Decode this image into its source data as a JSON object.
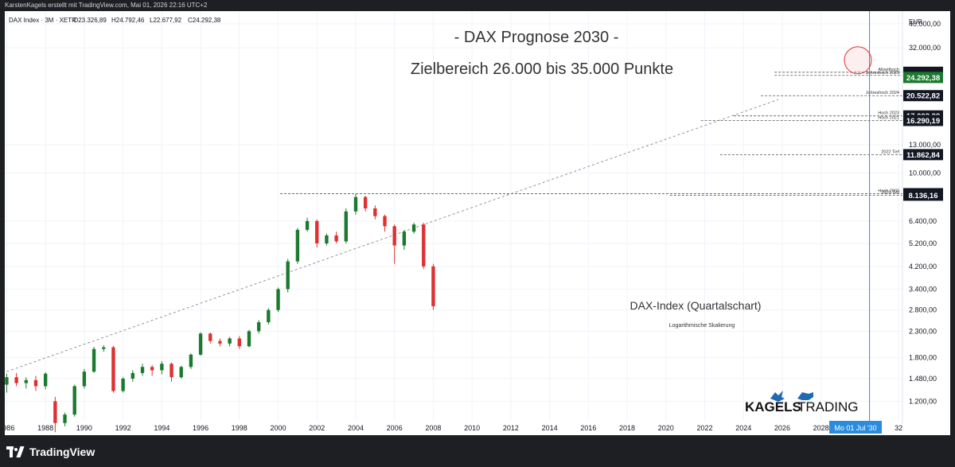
{
  "header": {
    "credit": "KarstenKagels erstellt mit TradingView.com, Mai 01, 2026 22:16 UTC+2"
  },
  "legend": {
    "symbol": "DAX Index · 3M · XETR",
    "open": "O23.326,89",
    "high": "H24.792,46",
    "low": "L22.677,92",
    "close": "C24.292,38"
  },
  "footer": {
    "brand": "TradingView"
  },
  "colors": {
    "up": "#1b7a2e",
    "down": "#e03131",
    "cursor": "#2a8cdf",
    "target": "#e03131",
    "brand_blue": "#1e6ab5"
  },
  "chart_data": {
    "type": "candlestick",
    "title": "- DAX Prognose 2030 -",
    "subtitle": "Zielbereich 26.000 bis 35.000 Punkte",
    "annotation": "DAX-Index (Quartalschart)",
    "annotation2": "Logarithmische Skalierung",
    "currency": "EUR",
    "scale": "log",
    "y_range": [
      1000,
      45000
    ],
    "x_range": [
      1985.9,
      2032.2
    ],
    "y_ticks": [
      "40.000,00",
      "32.000,00",
      "13.000,00",
      "10.000,00",
      "6.400,00",
      "5.200,00",
      "4.200,00",
      "3.400,00",
      "2.800,00",
      "2.300,00",
      "1.800,00",
      "1.480,00",
      "1.200,00"
    ],
    "x_ticks": [
      "1986",
      "1988",
      "1990",
      "1992",
      "1994",
      "1996",
      "1998",
      "2000",
      "2002",
      "2004",
      "2006",
      "2008",
      "2010",
      "2012",
      "2014",
      "2016",
      "2018",
      "2020",
      "2022",
      "2024",
      "2026",
      "2028",
      "32"
    ],
    "cursor": {
      "date": 2030.5,
      "label": "Mo 01 Jul '30"
    },
    "target_circle": {
      "date": 2029.9,
      "value": 28500
    },
    "price_labels": [
      {
        "value": "25.507,79",
        "num": 25507.79,
        "style": "dark"
      },
      {
        "value": "24.771,34",
        "num": 24771.34,
        "style": "dark"
      },
      {
        "value": "24.292,38",
        "num": 24292.38,
        "style": "green"
      },
      {
        "value": "20.522,82",
        "num": 20522.82,
        "style": "dark"
      },
      {
        "value": "17.003,28",
        "num": 17003.28,
        "style": "dark"
      },
      {
        "value": "16.290,19",
        "num": 16290.19,
        "style": "dark"
      },
      {
        "value": "11.862,84",
        "num": 11862.84,
        "style": "dark"
      },
      {
        "value": "8.255,65",
        "num": 8255.65,
        "style": "dark"
      },
      {
        "value": "8.136,16",
        "num": 8136.16,
        "style": "dark"
      }
    ],
    "levels": [
      {
        "name": "Allzeithoch",
        "value": 25507.79,
        "from": 2025.6
      },
      {
        "name": "Jahreshoch 2025",
        "value": 24771.34,
        "from": 2025.6
      },
      {
        "name": "Jahreshoch 2024",
        "value": 20522.82,
        "from": 2024.9
      },
      {
        "name": "Hoch 2023",
        "value": 17003.28,
        "from": 2023.5
      },
      {
        "name": "Hoch 2021",
        "value": 16290.19,
        "from": 2021.8
      },
      {
        "name": "2022 Tief",
        "value": 11862.84,
        "from": 2022.8
      },
      {
        "name": "Hoch 2000",
        "value": 8255.65,
        "from": 2000.1
      },
      {
        "name": "2020 Tief",
        "value": 8136.16,
        "from": 2020.2
      }
    ],
    "trendline": {
      "from": [
        1986.0,
        1580
      ],
      "to": [
        2025.8,
        19800
      ]
    },
    "candles": [
      [
        1986.0,
        1400,
        1500,
        1300,
        1550
      ],
      [
        1986.5,
        1500,
        1420,
        1380,
        1560
      ],
      [
        1987.0,
        1420,
        1460,
        1350,
        1500
      ],
      [
        1987.5,
        1460,
        1380,
        1320,
        1520
      ],
      [
        1988.0,
        1380,
        1550,
        1340,
        1570
      ],
      [
        1988.5,
        1200,
        980,
        900,
        1250
      ],
      [
        1989.0,
        980,
        1060,
        950,
        1080
      ],
      [
        1989.5,
        1060,
        1380,
        1040,
        1400
      ],
      [
        1990.0,
        1380,
        1580,
        1350,
        1620
      ],
      [
        1990.5,
        1580,
        1950,
        1560,
        1990
      ],
      [
        1991.0,
        1950,
        1980,
        1900,
        2020
      ],
      [
        1991.5,
        1980,
        1320,
        1300,
        2010
      ],
      [
        1992.0,
        1320,
        1480,
        1300,
        1500
      ],
      [
        1992.5,
        1480,
        1560,
        1440,
        1600
      ],
      [
        1993.0,
        1560,
        1650,
        1520,
        1700
      ],
      [
        1993.5,
        1650,
        1600,
        1520,
        1680
      ],
      [
        1994.0,
        1600,
        1700,
        1540,
        1740
      ],
      [
        1994.5,
        1700,
        1500,
        1440,
        1720
      ],
      [
        1995.0,
        1500,
        1650,
        1480,
        1670
      ],
      [
        1995.5,
        1650,
        1850,
        1620,
        1870
      ],
      [
        1996.0,
        1850,
        2250,
        1830,
        2280
      ],
      [
        1996.5,
        2250,
        2100,
        2050,
        2270
      ],
      [
        1997.0,
        2100,
        2050,
        2000,
        2150
      ],
      [
        1997.5,
        2050,
        2150,
        2000,
        2180
      ],
      [
        1998.0,
        2150,
        2000,
        1950,
        2200
      ],
      [
        1998.5,
        2000,
        2300,
        1980,
        2330
      ],
      [
        1999.0,
        2300,
        2500,
        2250,
        2550
      ],
      [
        1999.5,
        2500,
        2800,
        2450,
        2850
      ],
      [
        2000.0,
        2800,
        3400,
        2750,
        3450
      ],
      [
        2000.5,
        3400,
        4400,
        3300,
        4500
      ],
      [
        2001.0,
        4400,
        5900,
        4300,
        6000
      ],
      [
        2001.5,
        5900,
        6400,
        5800,
        6600
      ],
      [
        2002.0,
        6400,
        5200,
        5000,
        6500
      ],
      [
        2002.5,
        5200,
        5600,
        5100,
        5700
      ],
      [
        2003.0,
        5600,
        5300,
        5200,
        5800
      ],
      [
        2003.5,
        5300,
        7000,
        5200,
        7200
      ],
      [
        2004.0,
        7000,
        8000,
        6800,
        8250
      ],
      [
        2004.5,
        8000,
        7200,
        7000,
        8100
      ],
      [
        2005.0,
        7200,
        6700,
        6500,
        7400
      ],
      [
        2005.5,
        6700,
        6100,
        5800,
        6800
      ],
      [
        2006.0,
        6100,
        5100,
        4300,
        6200
      ],
      [
        2006.5,
        5100,
        5800,
        4900,
        5900
      ],
      [
        2007.0,
        5800,
        6200,
        5700,
        6300
      ],
      [
        2007.5,
        6200,
        4200,
        4100,
        6300
      ],
      [
        2008.0,
        4200,
        2900,
        2800,
        4300
      ]
    ]
  }
}
